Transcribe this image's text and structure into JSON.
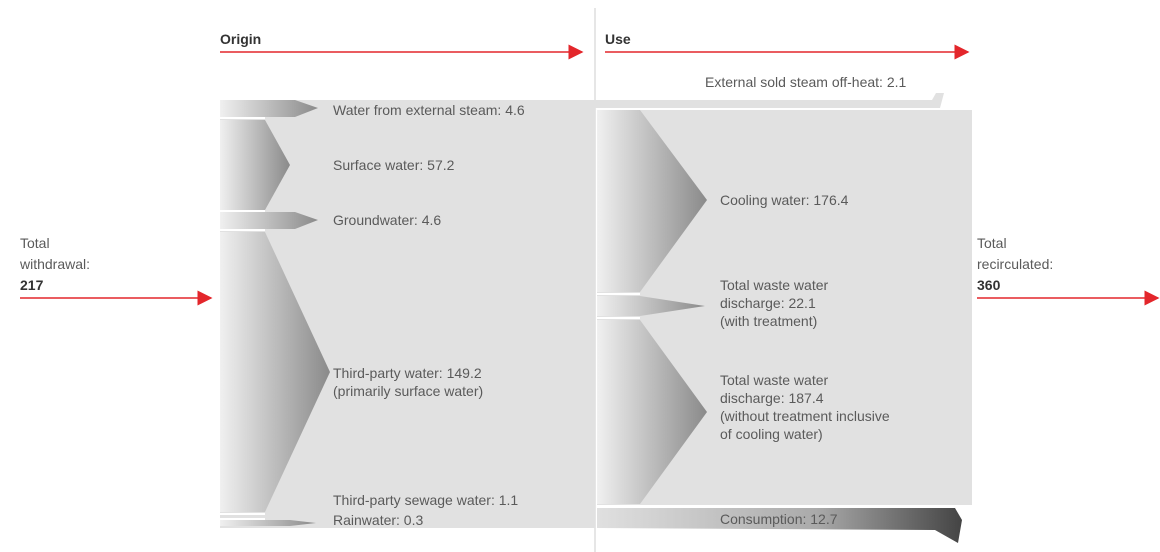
{
  "header": {
    "origin": "Origin",
    "use": "Use"
  },
  "withdrawal": {
    "lines": [
      "Total",
      "withdrawal:"
    ],
    "value": "217"
  },
  "recirculated": {
    "lines": [
      "Total",
      "recirculated:"
    ],
    "value": "360"
  },
  "origin_flows": [
    {
      "lines": [
        "Water from external steam: 4.6"
      ]
    },
    {
      "lines": [
        "Surface water: 57.2"
      ]
    },
    {
      "lines": [
        "Groundwater: 4.6"
      ]
    },
    {
      "lines": [
        "Third-party water: 149.2",
        "(primarily surface water)"
      ]
    },
    {
      "lines": [
        "Third-party sewage water: 1.1"
      ]
    },
    {
      "lines": [
        "Rainwater: 0.3"
      ]
    }
  ],
  "use_flows": [
    {
      "lines": [
        "External sold steam off-heat: 2.1"
      ]
    },
    {
      "lines": [
        "Cooling water: 176.4"
      ]
    },
    {
      "lines": [
        "Total waste water",
        "discharge: 22.1",
        "(with treatment)"
      ]
    },
    {
      "lines": [
        "Total waste water",
        "discharge: 187.4",
        "(without treatment inclusive",
        "of cooling water)"
      ]
    },
    {
      "lines": [
        "Consumption: 12.7"
      ]
    }
  ]
}
